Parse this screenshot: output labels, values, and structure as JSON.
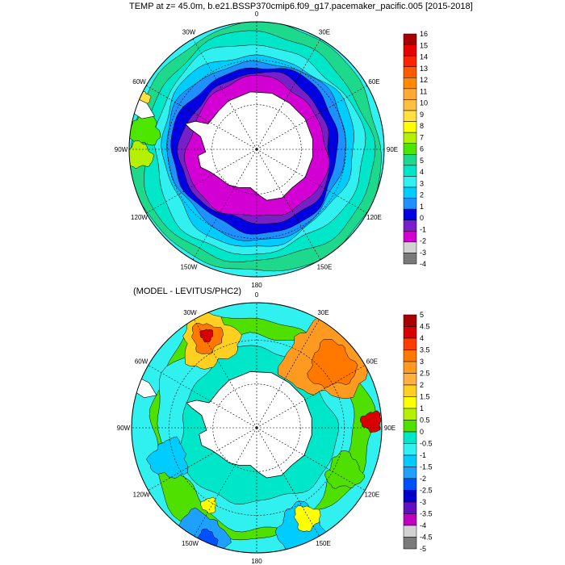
{
  "title": "TEMP at z=  45.0m, b.e21.BSSP370cmip6.f09_g17.pacemaker_pacific.005 [2015-2018]",
  "subtitle": "(MODEL - LEVITUS/PHC2)",
  "longitude_labels": [
    "0",
    "30E",
    "60E",
    "90E",
    "120E",
    "150E",
    "180",
    "150W",
    "120W",
    "90W",
    "60W",
    "30W"
  ],
  "colors": {
    "land": "#ffffff",
    "coast": "#000000",
    "contour": "#000000"
  },
  "chart_data": [
    {
      "type": "heatmap",
      "projection": "south-polar-stereographic",
      "variable": "TEMP",
      "colorbar_labels": [
        "16",
        "15",
        "14",
        "13",
        "12",
        "11",
        "10",
        "9",
        "8",
        "7",
        "6",
        "5",
        "4",
        "3",
        "2",
        "1",
        "0",
        "-1",
        "-2",
        "-3",
        "-4"
      ],
      "colorbar_colors": [
        "#a80000",
        "#e60000",
        "#ff2200",
        "#ff5a00",
        "#ff8c00",
        "#ffaa33",
        "#ffc040",
        "#ffe040",
        "#ffff00",
        "#b4f000",
        "#4ce600",
        "#1ed98c",
        "#00e6c8",
        "#30f0f0",
        "#00ccff",
        "#1e90ff",
        "#0000e0",
        "#7820c8",
        "#d200d2",
        "#d2d2d2",
        "#7a7a7a"
      ]
    },
    {
      "type": "heatmap",
      "projection": "south-polar-stereographic",
      "variable": "MODEL - LEVITUS/PHC2",
      "colorbar_labels": [
        "5",
        "4.5",
        "4",
        "3.5",
        "3",
        "2.5",
        "2",
        "1.5",
        "1",
        "0.5",
        "0",
        "-0.5",
        "-1",
        "-1.5",
        "-2",
        "-2.5",
        "-3",
        "-3.5",
        "-4",
        "-4.5",
        "-5"
      ],
      "colorbar_colors": [
        "#a80000",
        "#d80000",
        "#ff3c00",
        "#ff7800",
        "#ff9a20",
        "#ffb040",
        "#ffd020",
        "#ffff00",
        "#b4f000",
        "#50e000",
        "#00e6c8",
        "#30f0f0",
        "#00ccff",
        "#1ea0ff",
        "#0050ff",
        "#0000c8",
        "#6010c0",
        "#c000c0",
        "#d2d2d2",
        "#7a7a7a"
      ]
    }
  ]
}
